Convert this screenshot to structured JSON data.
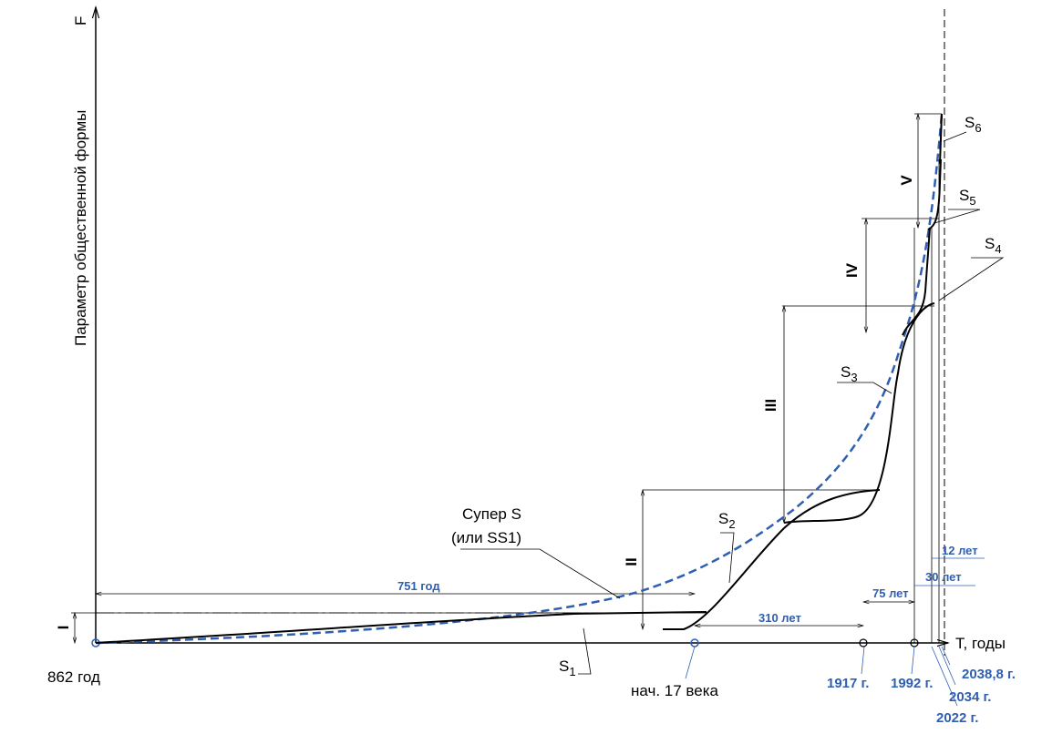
{
  "axes": {
    "y_label": "Параметр общественной формы",
    "y_symbol": "F",
    "x_label": "T, годы"
  },
  "x_marks": [
    "862 год",
    "нач. 17 века",
    "1917 г.",
    "1992 г.",
    "2022 г.",
    "2034 г.",
    "2038,8 г."
  ],
  "super_s": [
    "Супер S",
    "(или SS1)"
  ],
  "intervals": [
    "751 год",
    "310 лет",
    "75 лет",
    "30 лет",
    "12 лет"
  ],
  "stages": [
    "I",
    "II",
    "III",
    "IV",
    "V"
  ],
  "curves": [
    {
      "main": "S",
      "sub": "1"
    },
    {
      "main": "S",
      "sub": "2"
    },
    {
      "main": "S",
      "sub": "3"
    },
    {
      "main": "S",
      "sub": "4"
    },
    {
      "main": "S",
      "sub": "5"
    },
    {
      "main": "S",
      "sub": "6"
    }
  ]
}
